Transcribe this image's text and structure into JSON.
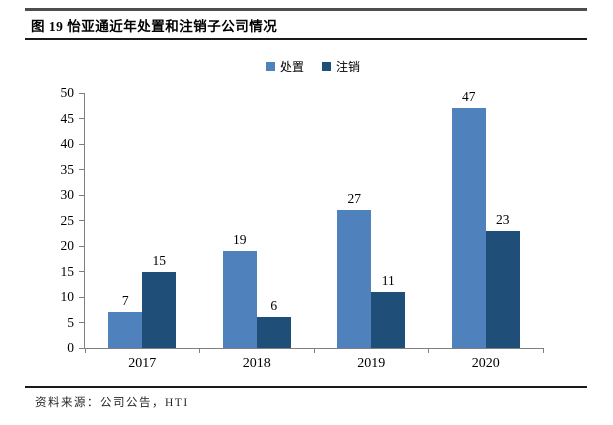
{
  "page": {
    "title": "图 19 怡亚通近年处置和注销子公司情况",
    "source": "资料来源：公司公告，HTI"
  },
  "chart_data": {
    "type": "bar",
    "title": "图 19 怡亚通近年处置和注销子公司情况",
    "categories": [
      "2017",
      "2018",
      "2019",
      "2020"
    ],
    "series": [
      {
        "name": "处置",
        "color": "#4F81BD",
        "values": [
          7,
          19,
          27,
          47
        ]
      },
      {
        "name": "注销",
        "color": "#1F4E79",
        "values": [
          15,
          6,
          11,
          23
        ]
      }
    ],
    "ylim": [
      0,
      50
    ],
    "ytick_step": 5,
    "grid": false,
    "legend_position": "top",
    "axis_color": "#7F7F7F",
    "source_note": "资料来源：公司公告，HTI"
  }
}
